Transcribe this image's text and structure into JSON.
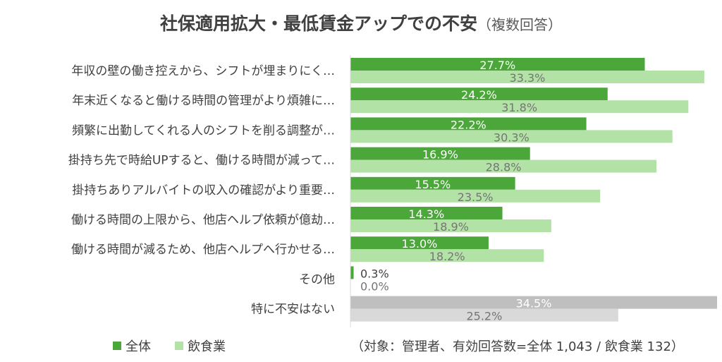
{
  "chart_data": {
    "type": "bar",
    "orientation": "horizontal",
    "title": "社保適用拡大・最低賃金アップでの不安",
    "subtitle": "（複数回答）",
    "categories": [
      "年収の壁の働き控えから、シフトが埋まりにく…",
      "年末近くなると働ける時間の管理がより煩雑に…",
      "頻繁に出勤してくれる人のシフトを削る調整が…",
      "掛持ち先で時給UPすると、働ける時間が減って…",
      "掛持ちありアルバイトの収入の確認がより重要…",
      "働ける時間の上限から、他店ヘルプ依頼が億劫…",
      "働ける時間が減るため、他店ヘルプへ行かせる…",
      "その他",
      "特に不安はない"
    ],
    "series": [
      {
        "name": "全体",
        "values": [
          27.7,
          24.2,
          22.2,
          16.9,
          15.5,
          14.3,
          13.0,
          0.3,
          34.5
        ],
        "labels": [
          "27.7%",
          "24.2%",
          "22.2%",
          "16.9%",
          "15.5%",
          "14.3%",
          "13.0%",
          "0.3%",
          "34.5%"
        ]
      },
      {
        "name": "飲食業",
        "values": [
          33.3,
          31.8,
          30.3,
          28.8,
          23.5,
          18.9,
          18.2,
          0.0,
          25.2
        ],
        "labels": [
          "33.3%",
          "31.8%",
          "30.3%",
          "28.8%",
          "23.5%",
          "18.9%",
          "18.2%",
          "0.0%",
          "25.2%"
        ]
      }
    ],
    "xlim": [
      0,
      34.5
    ],
    "xlabel": "",
    "ylabel": "",
    "legend_position": "bottom-left",
    "note": "（対象：管理者、有効回答数=全体 1,043 / 飲食業 132）"
  },
  "colors": {
    "series1": "#4ca73a",
    "series2": "#b3e2a6",
    "neutral1": "#bfbfbf",
    "neutral2": "#d9d9d9",
    "label_dark": "#404040",
    "label_light": "#ffffff",
    "label_gray": "#757575",
    "axis": "#d9d9d9"
  }
}
